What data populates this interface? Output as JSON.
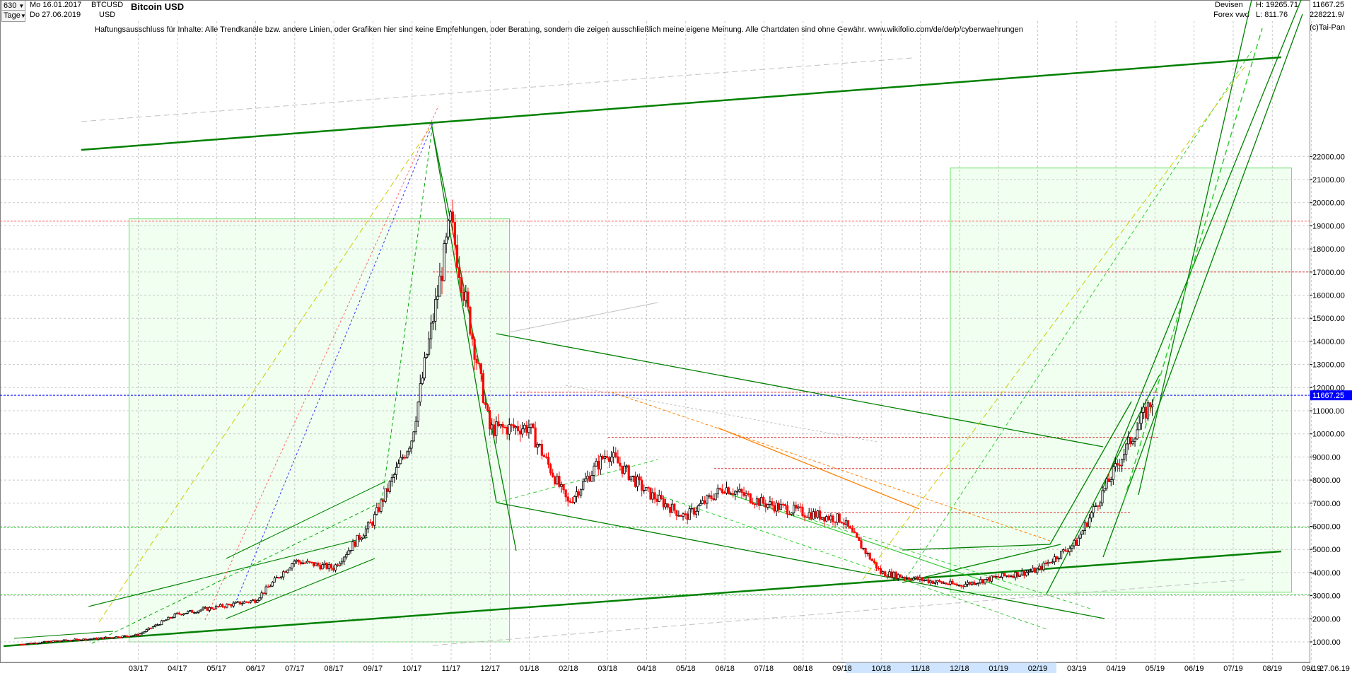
{
  "header": {
    "period_value": "630",
    "unit_value": "Tage",
    "date_from": "Mo 16.01.2017",
    "date_to": "Do 27.06.2019",
    "symbol": "BTCUSD",
    "currency": "USD",
    "title": "Bitcoin USD",
    "market": "Devisen",
    "feed": "Forex vwd",
    "high": "H: 19265.71",
    "low": "L: 811.76",
    "last": "11667.25",
    "volume": "228221.9/",
    "copyright": "(c)Tai-Pan"
  },
  "disclaimer": "Haftungsausschluss für Inhalte: Alle Trendkanäle bzw. andere Linien, oder Grafiken hier sind keine Empfehlungen, oder Beratung, sondern die zeigen ausschließlich meine eigene Meinung. Alle Chartdaten sind ohne Gewähr.  www.wikifolio.com/de/de/p/cyberwaehrungen",
  "chart_data": {
    "type": "candlestick",
    "ylim": [
      1000,
      23000
    ],
    "y_ticks": [
      "1000.00",
      "2000.00",
      "3000.00",
      "4000.00",
      "5000.00",
      "6000.00",
      "7000.00",
      "8000.00",
      "9000.00",
      "10000.00",
      "11000.00",
      "12000.00",
      "13000.00",
      "14000.00",
      "15000.00",
      "16000.00",
      "17000.00",
      "18000.00",
      "19000.00",
      "20000.00",
      "21000.00",
      "22000.00"
    ],
    "x_ticks": [
      "03.17",
      "04.17",
      "05.17",
      "06.17",
      "07.17",
      "08.17",
      "09.17",
      "10.17",
      "11.17",
      "12.17",
      "01.18",
      "02.18",
      "03.18",
      "04.18",
      "05.18",
      "06.18",
      "07.18",
      "08.18",
      "09.18",
      "10.18",
      "11.18",
      "12.18",
      "01.19",
      "02.19",
      "03.19",
      "04.19",
      "05.19",
      "06.19",
      "07.19",
      "08.19",
      "09.19"
    ],
    "x_end_label": "27.06.19",
    "current_price_label": "11667.25",
    "current_price": 11667.25,
    "series_monthly": [
      {
        "m": "01.17",
        "v": 900
      },
      {
        "m": "02.17",
        "v": 1050
      },
      {
        "m": "03.17",
        "v": 1150
      },
      {
        "m": "04.17",
        "v": 1300
      },
      {
        "m": "05.17",
        "v": 2200
      },
      {
        "m": "06.17",
        "v": 2500
      },
      {
        "m": "07.17",
        "v": 2800
      },
      {
        "m": "08.17",
        "v": 4500
      },
      {
        "m": "09.17",
        "v": 4200
      },
      {
        "m": "10.17",
        "v": 6200
      },
      {
        "m": "11.17",
        "v": 9800
      },
      {
        "m": "12.17",
        "v": 19200
      },
      {
        "m": "01.18",
        "v": 10200
      },
      {
        "m": "02.18",
        "v": 10300
      },
      {
        "m": "03.18",
        "v": 7000
      },
      {
        "m": "04.18",
        "v": 9200
      },
      {
        "m": "05.18",
        "v": 7500
      },
      {
        "m": "06.18",
        "v": 6400
      },
      {
        "m": "07.18",
        "v": 7700
      },
      {
        "m": "08.18",
        "v": 7000
      },
      {
        "m": "09.18",
        "v": 6600
      },
      {
        "m": "10.18",
        "v": 6300
      },
      {
        "m": "11.18",
        "v": 4000
      },
      {
        "m": "12.18",
        "v": 3700
      },
      {
        "m": "01.19",
        "v": 3450
      },
      {
        "m": "02.19",
        "v": 3800
      },
      {
        "m": "03.19",
        "v": 4100
      },
      {
        "m": "04.19",
        "v": 5300
      },
      {
        "m": "05.19",
        "v": 8500
      },
      {
        "m": "06.19",
        "v": 11667
      }
    ],
    "reference_levels": [
      19200,
      17000,
      11800,
      9850,
      8500,
      6600,
      5950,
      3050
    ],
    "highlight_boxes": [
      {
        "from": "03.17",
        "to": "01.18",
        "low": 1000,
        "high": 19300
      },
      {
        "from": "12.18",
        "to": "09.19",
        "low": 3150,
        "high": 21500
      }
    ]
  },
  "colors": {
    "candle_up": "#000000",
    "candle_down": "#ff0000",
    "trend_line": "#008000",
    "trend_light": "#33cc33",
    "box_fill": "#f0fff0",
    "grid": "#c8c8c8",
    "current_price_bg": "#0000ff",
    "resistance": "#ff0000"
  }
}
